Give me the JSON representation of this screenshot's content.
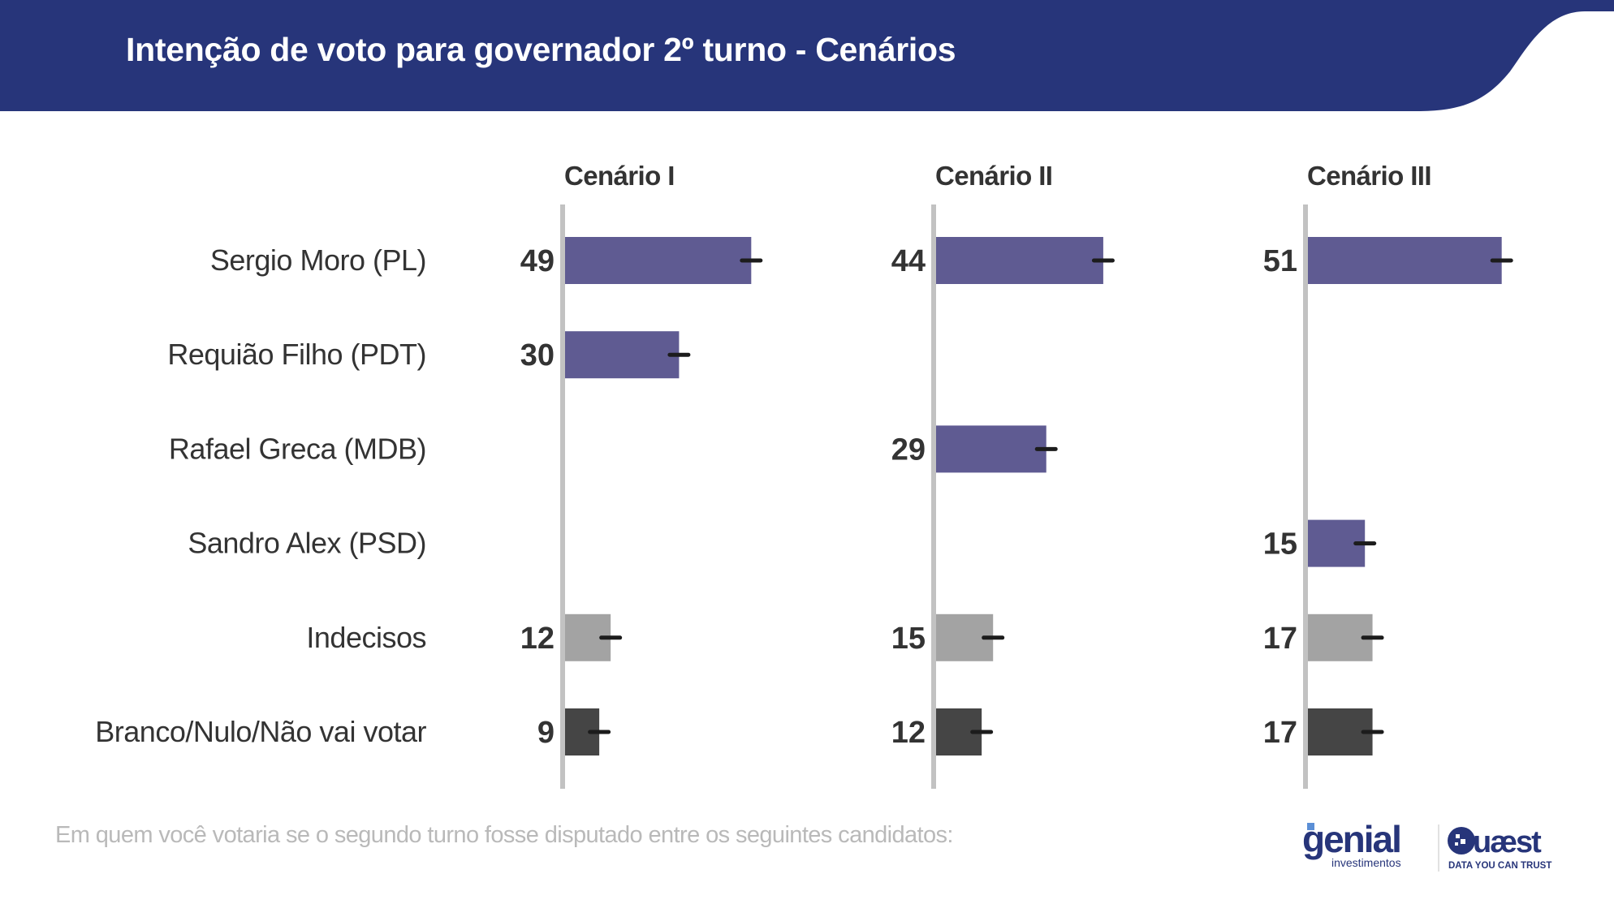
{
  "header": {
    "title": "Intenção de voto para governador 2º turno - Cenários",
    "color": "#27357a"
  },
  "footer": {
    "question": "Em quem você votaria se o segundo turno fosse disputado entre os seguintes candidatos:"
  },
  "logos": {
    "genial": {
      "name": "genial",
      "sub": "investimentos",
      "color": "#27357a",
      "accent": "#5b8fd6"
    },
    "quaest": {
      "name": "Quaest",
      "tagline": "DATA YOU CAN TRUST",
      "color": "#27357a"
    }
  },
  "chart_data": {
    "type": "bar",
    "orientation": "horizontal",
    "title": "Intenção de voto para governador 2º turno - Cenários",
    "categories": [
      "Sergio Moro (PL)",
      "Requião Filho (PDT)",
      "Rafael Greca (MDB)",
      "Sandro Alex (PSD)",
      "Indecisos",
      "Branco/Nulo/Não vai votar"
    ],
    "category_kinds": [
      "candidate",
      "candidate",
      "candidate",
      "candidate",
      "undecided",
      "blank"
    ],
    "colors": {
      "candidate": "#5f5b92",
      "undecided": "#a3a3a3",
      "blank": "#454545",
      "error_bar": "#1c1c1c",
      "axis": "#c2c2c2",
      "text": "#333333"
    },
    "series": [
      {
        "name": "Cenário I",
        "values": [
          49,
          30,
          null,
          null,
          12,
          9
        ]
      },
      {
        "name": "Cenário II",
        "values": [
          44,
          null,
          29,
          null,
          15,
          12
        ]
      },
      {
        "name": "Cenário III",
        "values": [
          51,
          null,
          null,
          15,
          17,
          17
        ]
      }
    ],
    "error_bars": true,
    "xlim": [
      0,
      60
    ],
    "xlabel": "",
    "ylabel": "",
    "grid": false,
    "unit": "%"
  }
}
